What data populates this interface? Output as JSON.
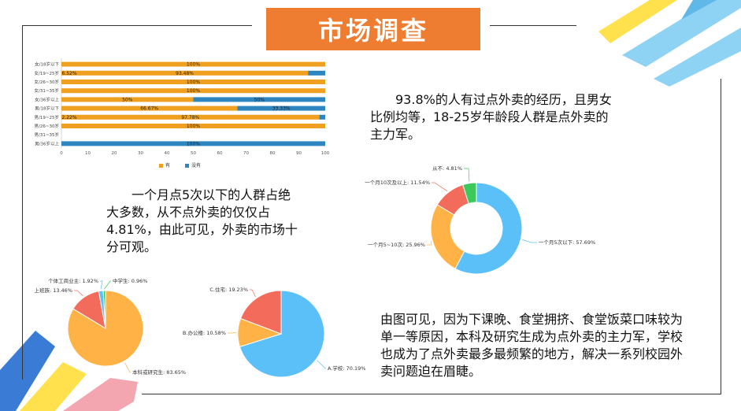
{
  "title": "市场调查",
  "texts": {
    "experience": "93.8%的人有过点外卖的经历，且男女比例均等，18-25岁年龄段人群是点外卖的主力军。",
    "frequency": "一个月点5次以下的人群占绝大多数，从不点外卖的仅仅占4.81%，由此可见，外卖的市场十分可观。",
    "location": "由图可见，因为下课晚、食堂拥挤、食堂饭菜口味较为单一等原因，本科及研究生成为点外卖的主力军，学校也成为了点外卖最多最频繁的地方，解决一系列校园外卖问题迫在眉睫。"
  },
  "chart_data": [
    {
      "type": "bar",
      "orientation": "horizontal",
      "stacked": true,
      "categories": [
        "女/18岁以下",
        "女/19~25岁",
        "女/26~30岁",
        "女/31~35岁",
        "女/36岁以上",
        "男/18岁以下",
        "男/19~25岁",
        "男/26~30岁",
        "男/31~35岁",
        "男/36岁以上"
      ],
      "series": [
        {
          "name": "有",
          "color": "#f0a020",
          "values": [
            100,
            93.48,
            100,
            100,
            50,
            66.67,
            97.78,
            100,
            0,
            0
          ],
          "labels": [
            "100%",
            "93.48%",
            "100%",
            "100%",
            "50%",
            "66.67%",
            "97.78%",
            "100%",
            "",
            ""
          ]
        },
        {
          "name": "没有",
          "color": "#2e86c1",
          "values": [
            0,
            6.52,
            0,
            0,
            50,
            33.33,
            2.22,
            0,
            0,
            100
          ],
          "labels": [
            "",
            "6.52%",
            "",
            "",
            "50%",
            "33.33%",
            "2.22%",
            "",
            "",
            "100%"
          ]
        }
      ],
      "xticks": [
        "0",
        "10",
        "20",
        "30",
        "40",
        "50",
        "60",
        "70",
        "80",
        "90",
        "100"
      ],
      "xlim": [
        0,
        100
      ]
    },
    {
      "type": "pie",
      "variant": "donut",
      "slices": [
        {
          "label": "一个月5次以下: 57.69%",
          "value": 57.69,
          "color": "#5bc0f8"
        },
        {
          "label": "一个月5~10次: 25.96%",
          "value": 25.96,
          "color": "#ffb347"
        },
        {
          "label": "一个月10次及以上: 11.54%",
          "value": 11.54,
          "color": "#f26b5b"
        },
        {
          "label": "从不: 4.81%",
          "value": 4.81,
          "color": "#3cc95a"
        }
      ]
    },
    {
      "type": "pie",
      "slices": [
        {
          "label": "本科或研究生: 83.65%",
          "value": 83.65,
          "color": "#ffb347"
        },
        {
          "label": "上班族: 13.46%",
          "value": 13.46,
          "color": "#f26b5b"
        },
        {
          "label": "个体工商业主: 1.92%",
          "value": 1.92,
          "color": "#5bc0f8"
        },
        {
          "label": "中学生: 0.96%",
          "value": 0.96,
          "color": "#3cc95a"
        }
      ]
    },
    {
      "type": "pie",
      "slices": [
        {
          "label": "A.学校: 70.19%",
          "value": 70.19,
          "color": "#5bc0f8"
        },
        {
          "label": "B.办公楼: 10.58%",
          "value": 10.58,
          "color": "#ffb347"
        },
        {
          "label": "C.住宅: 19.23%",
          "value": 19.23,
          "color": "#f26b5b"
        }
      ]
    }
  ]
}
